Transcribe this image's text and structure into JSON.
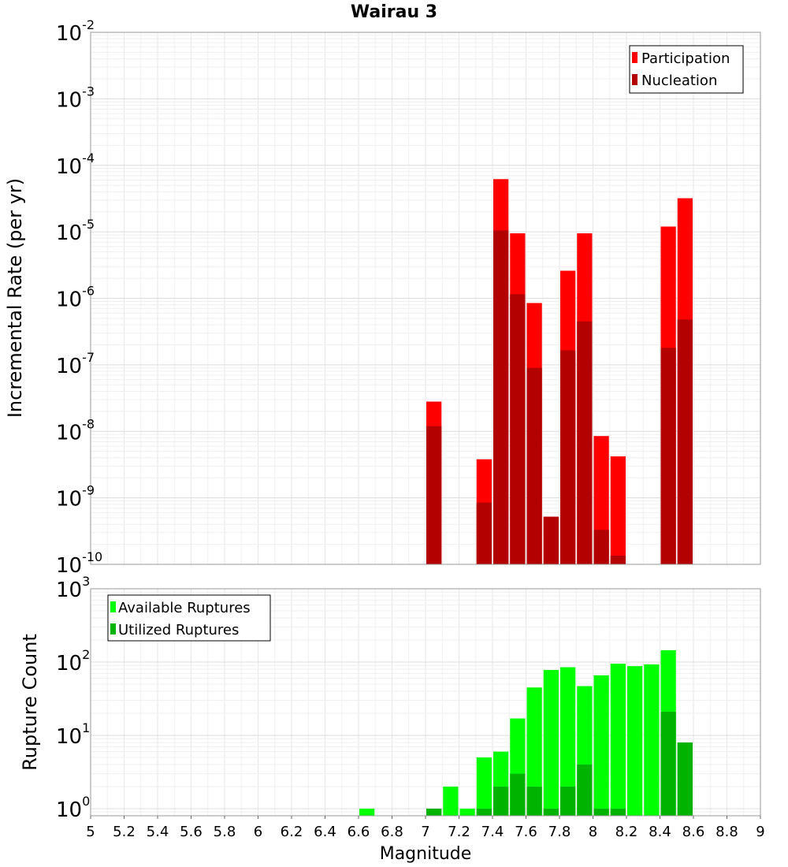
{
  "chart_data": [
    {
      "type": "bar",
      "title": "Wairau 3",
      "ylabel": "Incremental Rate (per yr)",
      "yscale": "log",
      "ylim": [
        1e-10,
        0.01
      ],
      "yticks": [
        {
          "base": "10",
          "exp": "-2"
        },
        {
          "base": "10",
          "exp": "-3"
        },
        {
          "base": "10",
          "exp": "-4"
        },
        {
          "base": "10",
          "exp": "-5"
        },
        {
          "base": "10",
          "exp": "-6"
        },
        {
          "base": "10",
          "exp": "-7"
        },
        {
          "base": "10",
          "exp": "-8"
        },
        {
          "base": "10",
          "exp": "-9"
        },
        {
          "base": "10",
          "exp": "-10"
        }
      ],
      "xlim": [
        5,
        9
      ],
      "grid": true,
      "legend_position": "top-right",
      "colors": {
        "Participation": "#ff0000",
        "Nucleation": "#b30000"
      },
      "series": [
        {
          "name": "Participation",
          "x": [
            7.05,
            7.35,
            7.45,
            7.55,
            7.65,
            7.75,
            7.85,
            7.95,
            8.05,
            8.15,
            8.45,
            8.55
          ],
          "values": [
            2.8e-08,
            3.8e-09,
            6.2e-05,
            9.5e-06,
            8.5e-07,
            5.2e-10,
            2.6e-06,
            9.5e-06,
            8.5e-09,
            4.2e-09,
            1.2e-05,
            3.2e-05
          ]
        },
        {
          "name": "Nucleation",
          "x": [
            7.05,
            7.35,
            7.45,
            7.55,
            7.65,
            7.75,
            7.85,
            7.95,
            8.05,
            8.15,
            8.45,
            8.55
          ],
          "values": [
            1.2e-08,
            8.5e-10,
            1.05e-05,
            1.15e-06,
            9e-08,
            5.2e-10,
            1.65e-07,
            4.5e-07,
            3.3e-10,
            1.35e-10,
            1.8e-07,
            4.8e-07
          ]
        }
      ]
    },
    {
      "type": "bar",
      "xlabel": "Magnitude",
      "ylabel": "Rupture Count",
      "yscale": "log",
      "ylim": [
        0.8,
        1000
      ],
      "yticks": [
        {
          "base": "10",
          "exp": "3"
        },
        {
          "base": "10",
          "exp": "2"
        },
        {
          "base": "10",
          "exp": "1"
        },
        {
          "base": "10",
          "exp": "0"
        }
      ],
      "xlim": [
        5,
        9
      ],
      "xticks": [
        "5",
        "5.2",
        "5.4",
        "5.6",
        "5.8",
        "6",
        "6.2",
        "6.4",
        "6.6",
        "6.8",
        "7",
        "7.2",
        "7.4",
        "7.6",
        "7.8",
        "8",
        "8.2",
        "8.4",
        "8.6",
        "8.8",
        "9"
      ],
      "grid": true,
      "legend_position": "top-left",
      "colors": {
        "Available Ruptures": "#00ff00",
        "Utilized Ruptures": "#00b300"
      },
      "series": [
        {
          "name": "Available Ruptures",
          "x": [
            6.65,
            7.05,
            7.15,
            7.25,
            7.35,
            7.45,
            7.55,
            7.65,
            7.75,
            7.85,
            7.95,
            8.05,
            8.15,
            8.25,
            8.35,
            8.45,
            8.55
          ],
          "values": [
            1,
            1,
            2,
            1,
            5,
            6,
            17,
            45,
            78,
            85,
            47,
            66,
            95,
            88,
            93,
            145,
            8
          ]
        },
        {
          "name": "Utilized Ruptures",
          "x": [
            6.65,
            7.05,
            7.15,
            7.25,
            7.35,
            7.45,
            7.55,
            7.65,
            7.75,
            7.85,
            7.95,
            8.05,
            8.15,
            8.25,
            8.35,
            8.45,
            8.55
          ],
          "values": [
            0,
            1,
            0,
            0,
            1,
            2,
            3,
            2,
            1,
            2,
            4,
            1,
            1,
            0,
            0,
            21,
            8
          ]
        }
      ]
    }
  ]
}
